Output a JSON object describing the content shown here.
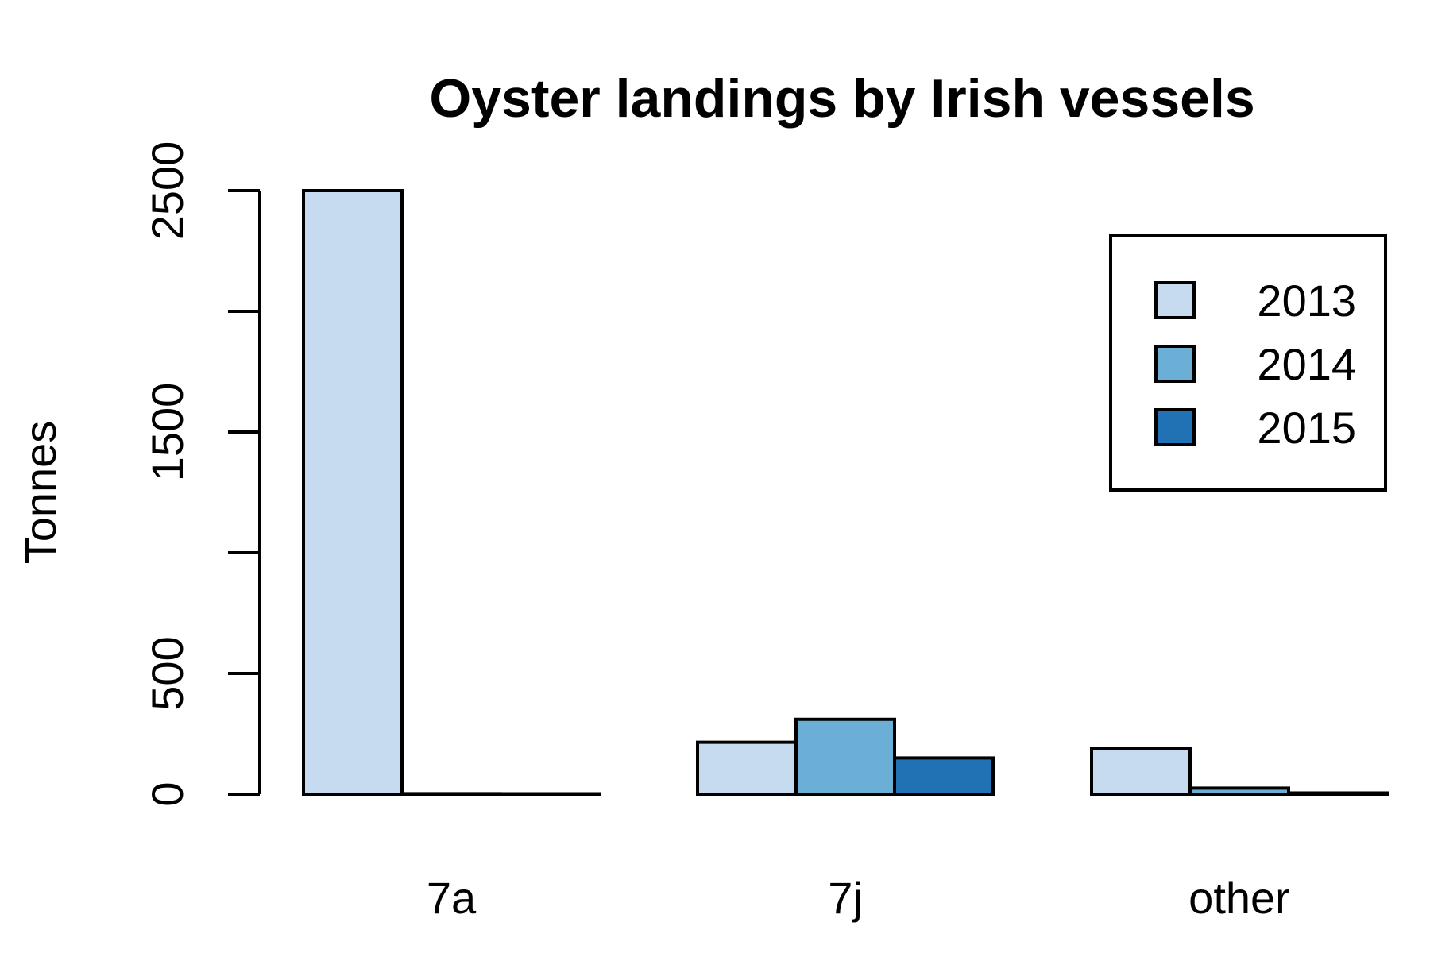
{
  "chart_data": {
    "type": "bar",
    "title": "Oyster landings by Irish vessels",
    "xlabel": "",
    "ylabel": "Tonnes",
    "categories": [
      "7a",
      "7j",
      "other"
    ],
    "yticks": [
      "0",
      "500",
      "1500",
      "2500"
    ],
    "ylim": [
      0,
      2500
    ],
    "grid": false,
    "legend_position": "top-right",
    "series": [
      {
        "name": "2013",
        "color": "#c6dbef",
        "values": [
          2500,
          215,
          190
        ]
      },
      {
        "name": "2014",
        "color": "#6baed6",
        "values": [
          2,
          310,
          25
        ]
      },
      {
        "name": "2015",
        "color": "#2171b5",
        "values": [
          1,
          150,
          5
        ]
      }
    ]
  }
}
